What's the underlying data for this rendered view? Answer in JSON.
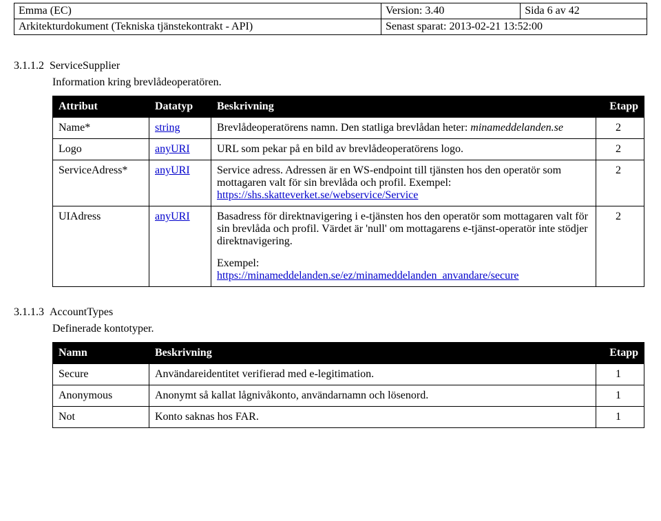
{
  "header": {
    "row1": {
      "a": "Emma (EC)",
      "b": "Version: 3.40",
      "c": "Sida 6 av 42"
    },
    "row2": {
      "a": "Arkitekturdokument (Tekniska tjänstekontrakt - API)",
      "bc": "Senast sparat: 2013-02-21 13:52:00"
    }
  },
  "section1": {
    "num": "3.1.1.2",
    "title": "ServiceSupplier",
    "desc": "Information kring brevlådeoperatören.",
    "columns": {
      "c1": "Attribut",
      "c2": "Datatyp",
      "c3": "Beskrivning",
      "c4": "Etapp"
    },
    "rows": {
      "name": {
        "attr": "Name*",
        "dtype": "string",
        "desc_a": "Brevlådeoperatörens namn. Den statliga brevlådan heter:",
        "desc_b": "minameddelanden.se",
        "etapp": "2"
      },
      "logo": {
        "attr": "Logo",
        "dtype": "anyURI",
        "desc": "URL som pekar på en bild av brevlådeoperatörens logo.",
        "etapp": "2"
      },
      "serviceaddr": {
        "attr": "ServiceAdress*",
        "dtype": "anyURI",
        "desc_a": "Service adress. Adressen är en WS-endpoint till tjänsten hos den operatör som mottagaren valt för sin brevlåda och profil. Exempel:",
        "link": "https://shs.skatteverket.se/webservice/Service",
        "etapp": "2"
      },
      "uiaddr": {
        "attr": "UIAdress",
        "dtype": "anyURI",
        "desc_a": "Basadress för direktnavigering i e-tjänsten hos den operatör som mottagaren valt för sin brevlåda och profil. Värdet är 'null' om mottagarens e-tjänst-operatör inte stödjer direktnavigering.",
        "ex_label": "Exempel:",
        "link": "https://minameddelanden.se/ez/minameddelanden_anvandare/secure",
        "etapp": "2"
      }
    }
  },
  "section2": {
    "num": "3.1.1.3",
    "title": "AccountTypes",
    "desc": "Definerade kontotyper.",
    "columns": {
      "c1": "Namn",
      "c2": "Beskrivning",
      "c3": "Etapp"
    },
    "rows": {
      "secure": {
        "name": "Secure",
        "desc": "Användareidentitet verifierad med e-legitimation.",
        "etapp": "1"
      },
      "anonymous": {
        "name": "Anonymous",
        "desc": "Anonymt så kallat lågnivåkonto, användarnamn och lösenord.",
        "etapp": "1"
      },
      "not": {
        "name": "Not",
        "desc": "Konto saknas hos FAR.",
        "etapp": "1"
      }
    }
  }
}
